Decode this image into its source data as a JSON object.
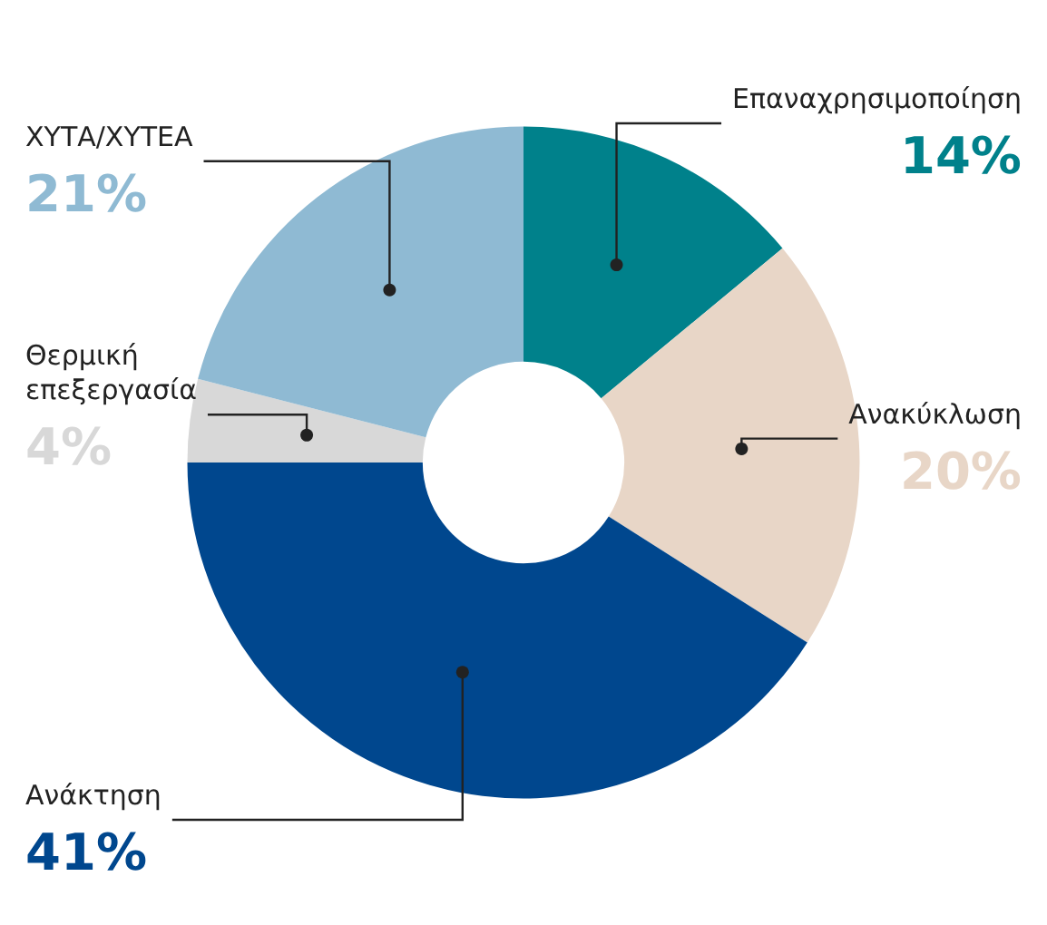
{
  "chart_data": {
    "type": "donut",
    "categories": [
      "Επαναχρησιμοποίηση",
      "Ανακύκλωση",
      "Ανάκτηση",
      "Θερμική επεξεργασία",
      "ΧΥΤΑ/ΧΥΤΕΑ"
    ],
    "values": [
      14,
      20,
      41,
      4,
      21
    ],
    "value_labels": [
      "14%",
      "20%",
      "41%",
      "4%",
      "21%"
    ],
    "colors": [
      "#00818b",
      "#e8d6c7",
      "#00478e",
      "#d8d8d8",
      "#8fbad3"
    ],
    "data_labels": true,
    "legend": false
  }
}
